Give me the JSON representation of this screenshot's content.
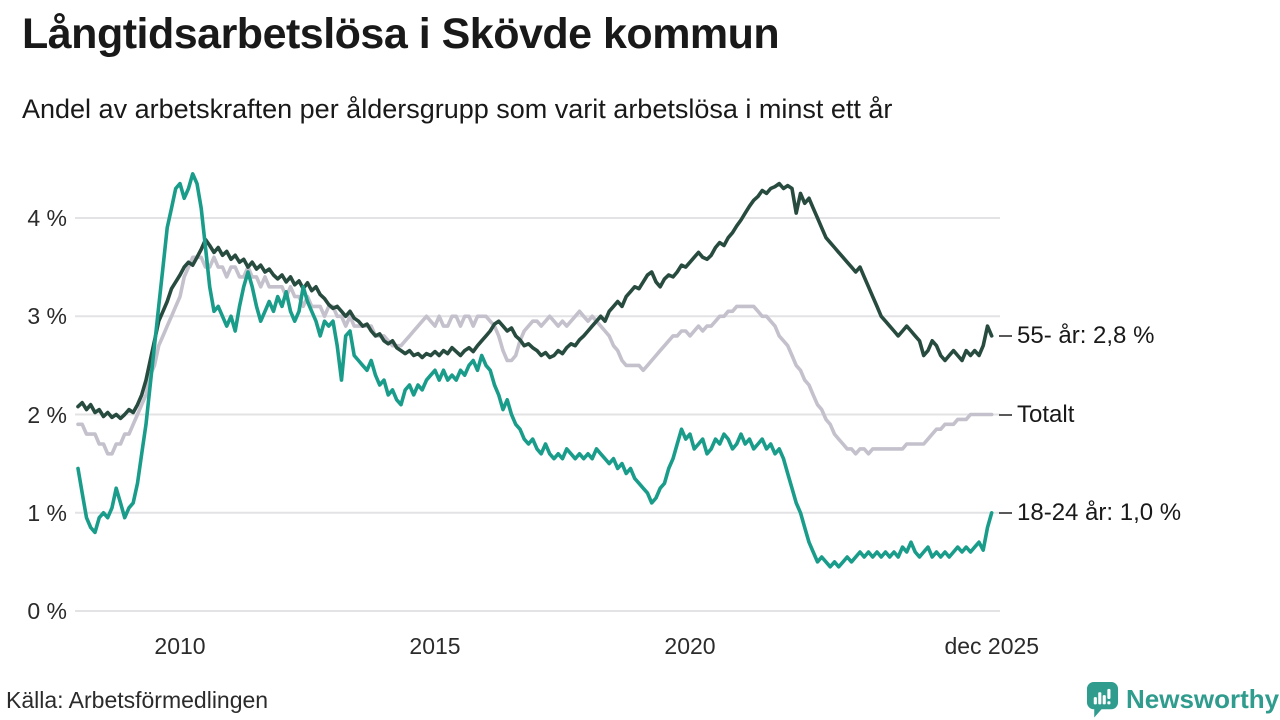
{
  "header": {
    "title": "Långtidsarbetslösa i Skövde kommun",
    "subtitle": "Andel av arbetskraften per åldersgrupp som varit arbetslösa i minst ett år"
  },
  "footer": {
    "source": "Källa: Arbetsförmedlingen",
    "brand": "Newsworthy"
  },
  "colors": {
    "series_55": "#284b40",
    "series_total": "#c4c1cc",
    "series_18_24": "#1a9c8b",
    "gridline": "#e3e3e6",
    "text": "#191919",
    "tick_text": "#2b2b2b",
    "brand_teal": "#2f9c8e",
    "label_dash": "#595959"
  },
  "chart_data": {
    "type": "line",
    "title": "Långtidsarbetslösa i Skövde kommun",
    "subtitle": "Andel av arbetskraften per åldersgrupp som varit arbetslösa i minst ett år",
    "x_unit": "year (monthly points)",
    "x_start": 2008.0,
    "x_step": 0.0833333,
    "xlim": [
      2008.0,
      2025.92
    ],
    "ylim": [
      0,
      4.6
    ],
    "grid": "horizontal",
    "legend_position": "right-end-labels",
    "x_ticks": [
      {
        "t": 2010,
        "label": "2010"
      },
      {
        "t": 2015,
        "label": "2015"
      },
      {
        "t": 2020,
        "label": "2020"
      },
      {
        "t": 2025.917,
        "label": "dec 2025"
      }
    ],
    "y_ticks": [
      {
        "v": 0,
        "label": "0 %"
      },
      {
        "v": 1,
        "label": "1 %"
      },
      {
        "v": 2,
        "label": "2 %"
      },
      {
        "v": 3,
        "label": "3 %"
      },
      {
        "v": 4,
        "label": "4 %"
      }
    ],
    "series": [
      {
        "name": "Totalt",
        "end_label": "Totalt",
        "end_value": 2.0,
        "color_key": "series_total",
        "values": [
          1.9,
          1.9,
          1.8,
          1.8,
          1.8,
          1.7,
          1.7,
          1.6,
          1.6,
          1.7,
          1.7,
          1.8,
          1.8,
          1.9,
          2.0,
          2.1,
          2.2,
          2.4,
          2.5,
          2.7,
          2.8,
          2.9,
          3.0,
          3.1,
          3.2,
          3.4,
          3.5,
          3.6,
          3.6,
          3.6,
          3.5,
          3.5,
          3.6,
          3.5,
          3.5,
          3.4,
          3.5,
          3.5,
          3.4,
          3.4,
          3.5,
          3.4,
          3.4,
          3.3,
          3.4,
          3.3,
          3.3,
          3.3,
          3.3,
          3.2,
          3.3,
          3.2,
          3.2,
          3.1,
          3.2,
          3.1,
          3.1,
          3.1,
          3.0,
          3.1,
          3.1,
          3.0,
          3.0,
          2.9,
          3.0,
          2.9,
          2.9,
          2.9,
          2.9,
          2.9,
          2.8,
          2.8,
          2.8,
          2.75,
          2.7,
          2.7,
          2.7,
          2.75,
          2.8,
          2.85,
          2.9,
          2.95,
          3.0,
          2.95,
          2.9,
          3.0,
          2.9,
          2.9,
          3.0,
          3.0,
          2.9,
          3.0,
          3.0,
          2.9,
          3.0,
          3.0,
          3.0,
          2.95,
          2.9,
          2.8,
          2.65,
          2.55,
          2.55,
          2.6,
          2.75,
          2.85,
          2.9,
          2.95,
          2.95,
          2.9,
          2.95,
          3.0,
          2.95,
          2.9,
          2.95,
          2.9,
          2.95,
          3.0,
          3.05,
          3.0,
          2.95,
          3.0,
          2.95,
          2.9,
          2.85,
          2.8,
          2.7,
          2.65,
          2.55,
          2.5,
          2.5,
          2.5,
          2.5,
          2.45,
          2.5,
          2.55,
          2.6,
          2.65,
          2.7,
          2.75,
          2.8,
          2.8,
          2.85,
          2.85,
          2.8,
          2.85,
          2.9,
          2.85,
          2.9,
          2.9,
          2.95,
          3.0,
          3.0,
          3.05,
          3.05,
          3.1,
          3.1,
          3.1,
          3.1,
          3.1,
          3.05,
          3.0,
          3.0,
          2.95,
          2.9,
          2.8,
          2.75,
          2.7,
          2.6,
          2.5,
          2.45,
          2.35,
          2.3,
          2.2,
          2.1,
          2.05,
          1.95,
          1.9,
          1.8,
          1.75,
          1.7,
          1.65,
          1.65,
          1.6,
          1.65,
          1.65,
          1.6,
          1.65,
          1.65,
          1.65,
          1.65,
          1.65,
          1.65,
          1.65,
          1.65,
          1.7,
          1.7,
          1.7,
          1.7,
          1.7,
          1.75,
          1.8,
          1.85,
          1.85,
          1.9,
          1.9,
          1.9,
          1.95,
          1.95,
          1.95,
          2.0,
          2.0,
          2.0,
          2.0,
          2.0,
          2.0
        ]
      },
      {
        "name": "55- år",
        "end_label": "55- år: 2,8 %",
        "end_value": 2.8,
        "color_key": "series_55",
        "values": [
          2.08,
          2.12,
          2.05,
          2.1,
          2.02,
          2.05,
          1.98,
          2.02,
          1.97,
          2.0,
          1.96,
          2.0,
          2.05,
          2.02,
          2.1,
          2.2,
          2.35,
          2.55,
          2.75,
          2.95,
          3.05,
          3.15,
          3.28,
          3.35,
          3.42,
          3.5,
          3.55,
          3.52,
          3.6,
          3.68,
          3.78,
          3.72,
          3.65,
          3.7,
          3.62,
          3.66,
          3.58,
          3.62,
          3.55,
          3.58,
          3.5,
          3.55,
          3.48,
          3.52,
          3.45,
          3.48,
          3.42,
          3.38,
          3.42,
          3.35,
          3.4,
          3.32,
          3.36,
          3.28,
          3.34,
          3.26,
          3.3,
          3.22,
          3.18,
          3.12,
          3.08,
          3.1,
          3.05,
          3.0,
          3.05,
          2.98,
          2.95,
          2.9,
          2.92,
          2.85,
          2.8,
          2.82,
          2.75,
          2.72,
          2.75,
          2.68,
          2.65,
          2.62,
          2.65,
          2.6,
          2.62,
          2.58,
          2.62,
          2.6,
          2.64,
          2.6,
          2.65,
          2.62,
          2.68,
          2.64,
          2.6,
          2.65,
          2.68,
          2.64,
          2.7,
          2.75,
          2.8,
          2.85,
          2.92,
          2.95,
          2.9,
          2.85,
          2.88,
          2.8,
          2.76,
          2.7,
          2.72,
          2.68,
          2.65,
          2.6,
          2.63,
          2.58,
          2.6,
          2.65,
          2.62,
          2.68,
          2.72,
          2.7,
          2.76,
          2.8,
          2.85,
          2.9,
          2.95,
          3.0,
          2.95,
          3.05,
          3.1,
          3.15,
          3.1,
          3.2,
          3.25,
          3.3,
          3.28,
          3.35,
          3.42,
          3.45,
          3.35,
          3.3,
          3.38,
          3.42,
          3.4,
          3.45,
          3.52,
          3.5,
          3.55,
          3.6,
          3.65,
          3.6,
          3.58,
          3.62,
          3.7,
          3.75,
          3.72,
          3.8,
          3.85,
          3.92,
          3.98,
          4.05,
          4.12,
          4.18,
          4.22,
          4.28,
          4.25,
          4.3,
          4.32,
          4.35,
          4.3,
          4.33,
          4.3,
          4.05,
          4.25,
          4.15,
          4.2,
          4.1,
          4.0,
          3.9,
          3.8,
          3.75,
          3.7,
          3.65,
          3.6,
          3.55,
          3.5,
          3.45,
          3.5,
          3.4,
          3.3,
          3.2,
          3.1,
          3.0,
          2.95,
          2.9,
          2.85,
          2.8,
          2.85,
          2.9,
          2.85,
          2.8,
          2.75,
          2.6,
          2.65,
          2.75,
          2.7,
          2.6,
          2.55,
          2.6,
          2.65,
          2.6,
          2.55,
          2.65,
          2.6,
          2.65,
          2.6,
          2.7,
          2.9,
          2.8
        ]
      },
      {
        "name": "18-24 år",
        "end_label": "18-24 år: 1,0 %",
        "end_value": 1.0,
        "color_key": "series_18_24",
        "values": [
          1.45,
          1.2,
          0.95,
          0.85,
          0.8,
          0.95,
          1.0,
          0.95,
          1.05,
          1.25,
          1.1,
          0.95,
          1.05,
          1.1,
          1.3,
          1.6,
          1.9,
          2.3,
          2.7,
          3.1,
          3.5,
          3.9,
          4.1,
          4.3,
          4.35,
          4.2,
          4.3,
          4.45,
          4.35,
          4.1,
          3.7,
          3.3,
          3.05,
          3.1,
          3.0,
          2.9,
          3.0,
          2.85,
          3.1,
          3.3,
          3.45,
          3.3,
          3.1,
          2.95,
          3.05,
          3.15,
          3.05,
          3.2,
          3.1,
          3.25,
          3.05,
          2.95,
          3.05,
          3.3,
          3.15,
          3.05,
          2.95,
          2.8,
          2.95,
          2.9,
          2.95,
          2.7,
          2.35,
          2.8,
          2.85,
          2.6,
          2.55,
          2.5,
          2.45,
          2.55,
          2.4,
          2.3,
          2.35,
          2.2,
          2.25,
          2.15,
          2.1,
          2.25,
          2.3,
          2.2,
          2.3,
          2.25,
          2.35,
          2.4,
          2.45,
          2.35,
          2.45,
          2.35,
          2.4,
          2.35,
          2.45,
          2.4,
          2.5,
          2.55,
          2.45,
          2.6,
          2.5,
          2.45,
          2.3,
          2.2,
          2.05,
          2.15,
          2.0,
          1.9,
          1.85,
          1.75,
          1.7,
          1.75,
          1.65,
          1.6,
          1.7,
          1.6,
          1.55,
          1.6,
          1.55,
          1.65,
          1.6,
          1.55,
          1.6,
          1.55,
          1.6,
          1.55,
          1.65,
          1.6,
          1.55,
          1.5,
          1.55,
          1.45,
          1.5,
          1.4,
          1.45,
          1.35,
          1.3,
          1.25,
          1.2,
          1.1,
          1.15,
          1.25,
          1.3,
          1.45,
          1.55,
          1.7,
          1.85,
          1.75,
          1.8,
          1.65,
          1.7,
          1.75,
          1.6,
          1.65,
          1.75,
          1.7,
          1.8,
          1.75,
          1.65,
          1.7,
          1.8,
          1.7,
          1.75,
          1.65,
          1.7,
          1.75,
          1.65,
          1.7,
          1.6,
          1.65,
          1.55,
          1.4,
          1.25,
          1.1,
          1.0,
          0.85,
          0.7,
          0.6,
          0.5,
          0.55,
          0.5,
          0.45,
          0.5,
          0.45,
          0.5,
          0.55,
          0.5,
          0.55,
          0.6,
          0.55,
          0.6,
          0.55,
          0.6,
          0.55,
          0.6,
          0.55,
          0.6,
          0.55,
          0.65,
          0.6,
          0.7,
          0.6,
          0.55,
          0.6,
          0.65,
          0.55,
          0.6,
          0.55,
          0.6,
          0.55,
          0.6,
          0.65,
          0.6,
          0.65,
          0.6,
          0.65,
          0.7,
          0.62,
          0.85,
          1.0
        ]
      }
    ]
  }
}
